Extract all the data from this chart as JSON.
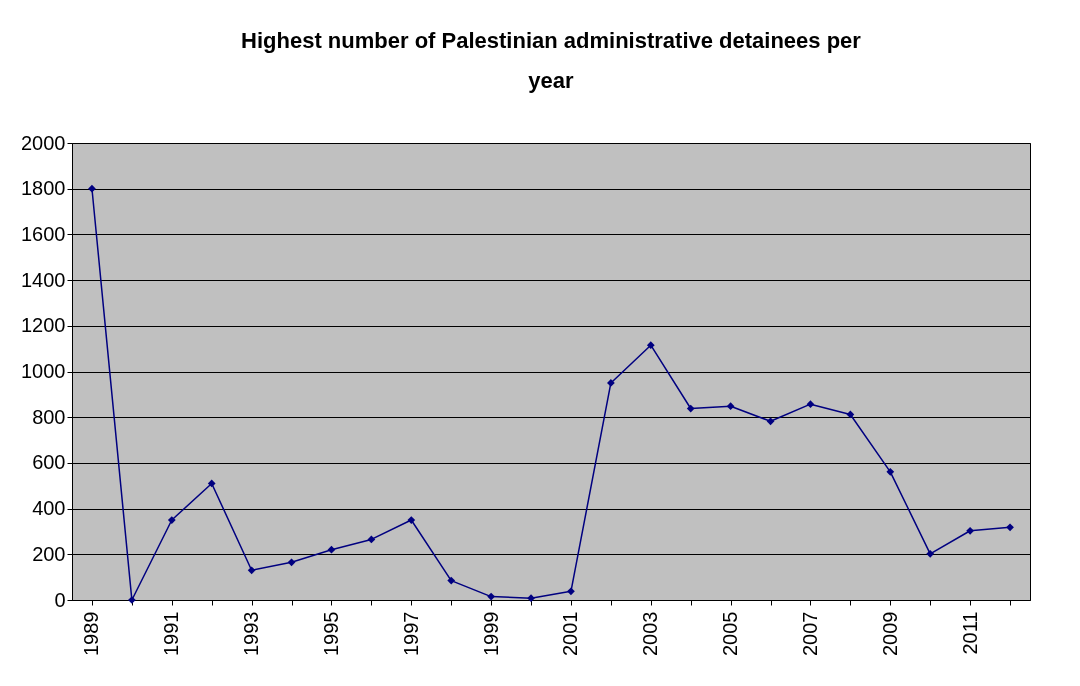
{
  "chart_data": {
    "type": "line",
    "title": "Highest number of Palestinian administrative detainees per year",
    "categories": [
      "1989",
      null,
      "1991",
      null,
      "1993",
      null,
      "1995",
      null,
      "1997",
      null,
      "1999",
      null,
      "2001",
      null,
      "2003",
      null,
      "2005",
      null,
      "2007",
      null,
      "2009",
      null,
      "2011",
      null
    ],
    "series": [
      {
        "color": "#000080",
        "values": [
          1800,
          0,
          350,
          510,
          130,
          165,
          220,
          265,
          350,
          85,
          15,
          8,
          38,
          950,
          1115,
          838,
          848,
          782,
          857,
          812,
          561,
          202,
          303,
          318
        ]
      }
    ],
    "ylim": [
      0,
      2000
    ],
    "yticks": [
      0,
      200,
      400,
      600,
      800,
      1000,
      1200,
      1400,
      1600,
      1800,
      2000
    ],
    "grid": "y",
    "marker": "diamond",
    "line_style": "solid"
  }
}
